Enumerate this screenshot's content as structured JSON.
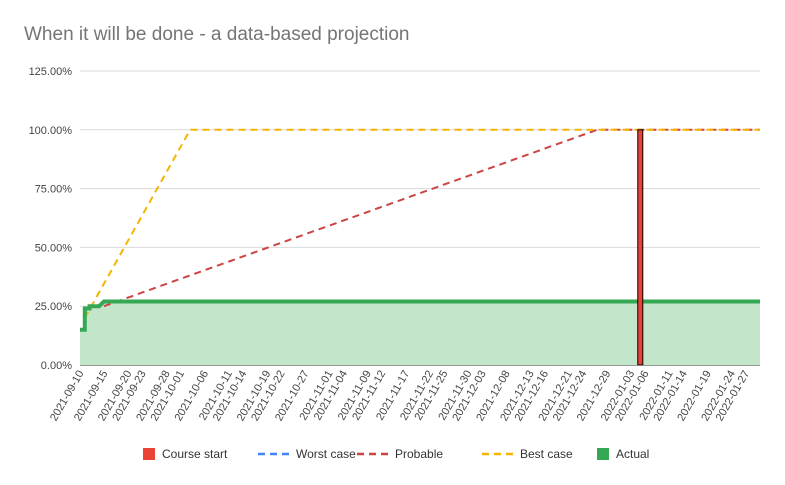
{
  "chart_data": {
    "type": "line",
    "title": "When it will be done - a data-based projection",
    "xlabel": "",
    "ylabel": "",
    "ylim": [
      0,
      125
    ],
    "y_ticks": [
      "0.00%",
      "25.00%",
      "50.00%",
      "75.00%",
      "100.00%",
      "125.00%"
    ],
    "x_range": [
      "2021-09-10",
      "2022-01-30"
    ],
    "x_ticks": [
      "2021-09-10",
      "2021-09-15",
      "2021-09-20",
      "2021-09-23",
      "2021-09-28",
      "2021-10-01",
      "2021-10-06",
      "2021-10-11",
      "2021-10-14",
      "2021-10-19",
      "2021-10-22",
      "2021-10-27",
      "2021-11-01",
      "2021-11-04",
      "2021-11-09",
      "2021-11-12",
      "2021-11-17",
      "2021-11-22",
      "2021-11-25",
      "2021-11-30",
      "2021-12-03",
      "2021-12-08",
      "2021-12-13",
      "2021-12-16",
      "2021-12-21",
      "2021-12-24",
      "2021-12-29",
      "2022-01-03",
      "2022-01-06",
      "2022-01-11",
      "2022-01-14",
      "2022-01-19",
      "2022-01-24",
      "2022-01-27"
    ],
    "grid": true,
    "legend_position": "bottom",
    "series": [
      {
        "name": "Course start",
        "kind": "bar",
        "color": "#ea4335",
        "points": [
          {
            "x": "2022-01-05",
            "y": 100
          }
        ]
      },
      {
        "name": "Worst case",
        "kind": "dashed-line",
        "color": "#4285f4",
        "points": []
      },
      {
        "name": "Probable",
        "kind": "dashed-line",
        "color": "#cc4444",
        "points": [
          {
            "x": "2021-09-15",
            "y": 25
          },
          {
            "x": "2021-12-27",
            "y": 100
          },
          {
            "x": "2022-01-30",
            "y": 100
          }
        ]
      },
      {
        "name": "Best case",
        "kind": "dashed-line",
        "color": "#f4b400",
        "points": [
          {
            "x": "2021-09-11",
            "y": 20
          },
          {
            "x": "2021-10-03",
            "y": 100
          },
          {
            "x": "2022-01-30",
            "y": 100
          }
        ]
      },
      {
        "name": "Actual",
        "kind": "area-line",
        "color": "#34a853",
        "fill": "#c3e6cb",
        "points": [
          {
            "x": "2021-09-10",
            "y": 15
          },
          {
            "x": "2021-09-11",
            "y": 15
          },
          {
            "x": "2021-09-11",
            "y": 24
          },
          {
            "x": "2021-09-12",
            "y": 24
          },
          {
            "x": "2021-09-12",
            "y": 25
          },
          {
            "x": "2021-09-14",
            "y": 25
          },
          {
            "x": "2021-09-15",
            "y": 27
          },
          {
            "x": "2022-01-30",
            "y": 27
          }
        ]
      }
    ]
  }
}
